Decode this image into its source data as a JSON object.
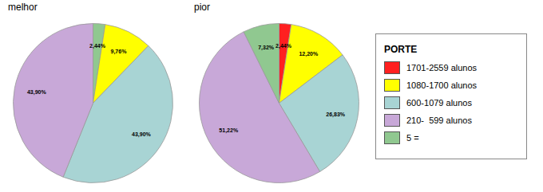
{
  "chart_data": [
    {
      "type": "pie",
      "title": "melhor",
      "categories": [
        "5 =",
        "1080-1700 alunos",
        "600-1079 alunos",
        "210-  599 alunos"
      ],
      "values": [
        2.44,
        9.76,
        43.9,
        43.9
      ],
      "value_labels": [
        "2,44%",
        "9,76%",
        "43,90%",
        "43,90%"
      ],
      "colors": [
        "#90c890",
        "#ffff00",
        "#a8d4d4",
        "#c8a8d8"
      ],
      "data_labels": true
    },
    {
      "type": "pie",
      "title": "pior",
      "categories": [
        "1701-2559 alunos",
        "1080-1700 alunos",
        "600-1079 alunos",
        "210-  599 alunos",
        "5 ="
      ],
      "values": [
        2.44,
        12.2,
        26.83,
        51.22,
        7.32
      ],
      "value_labels": [
        "2,44%",
        "12,20%",
        "26,83%",
        "51,22%",
        "7,32%"
      ],
      "colors": [
        "#ff2020",
        "#ffff00",
        "#a8d4d4",
        "#c8a8d8",
        "#90c890"
      ],
      "data_labels": true
    }
  ],
  "legend": "right",
  "legend_title": "PORTE"
}
